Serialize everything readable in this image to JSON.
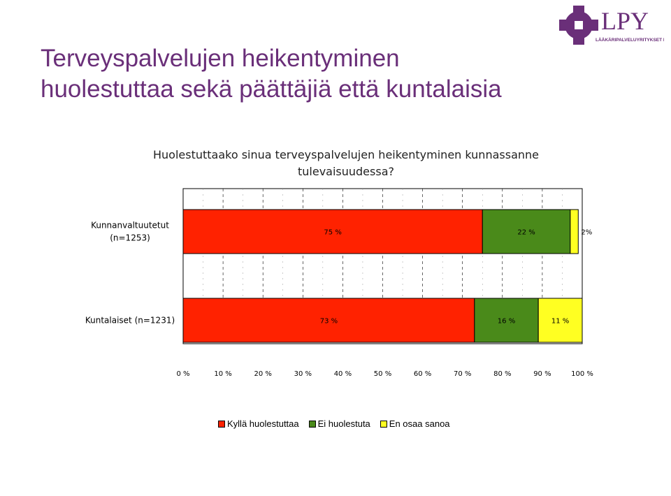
{
  "slide": {
    "title_lines": [
      "Terveyspalvelujen heikentyminen",
      "huolestuttaa sekä päättäjiä että kuntalaisia"
    ]
  },
  "logo": {
    "text": "LPY",
    "subtext": "LÄÄKÄRIPALVELUYRITYKSET RY",
    "color": "#6a2f79"
  },
  "question_lines": [
    "Huolestuttaako sinua terveyspalvelujen heikentyminen kunnassanne",
    "tulevaisuudessa?"
  ],
  "chart_data": {
    "type": "bar",
    "orientation": "horizontal",
    "stacked": true,
    "categories": [
      "Kunnanvaltuutetut (n=1253)",
      "Kuntalaiset (n=1231)"
    ],
    "category_label_lines": [
      [
        "Kunnanvaltuutetut",
        "(n=1253)"
      ],
      [
        "Kuntalaiset (n=1231)"
      ]
    ],
    "series": [
      {
        "name": "Kyllä huolestuttaa",
        "values": [
          75,
          73
        ],
        "labels": [
          "75 %",
          "73 %"
        ],
        "color": "#ff2200"
      },
      {
        "name": "Ei huolestuta",
        "values": [
          22,
          16
        ],
        "labels": [
          "22 %",
          "16 %"
        ],
        "color": "#4a8a1a"
      },
      {
        "name": "En osaa sanoa",
        "values": [
          2,
          11
        ],
        "labels": [
          "2%",
          "11 %"
        ],
        "color": "#ffff22"
      }
    ],
    "xlim": [
      0,
      100
    ],
    "x_ticks": [
      "0 %",
      "10 %",
      "20 %",
      "30 %",
      "40 %",
      "50 %",
      "60 %",
      "70 %",
      "80 %",
      "90 %",
      "100 %"
    ],
    "grid": true,
    "legend_position": "bottom"
  }
}
